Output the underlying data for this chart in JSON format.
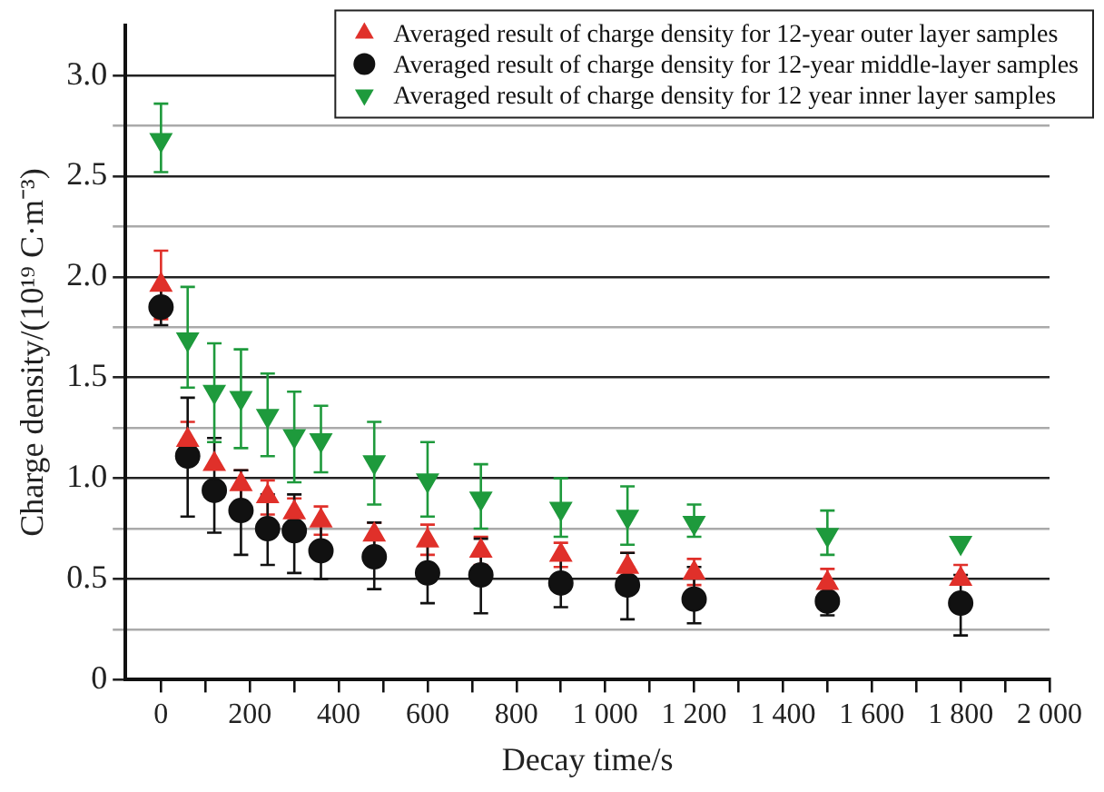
{
  "chart_data": {
    "type": "scatter",
    "xlabel": "Decay time/s",
    "ylabel": "Charge density/(10¹⁹ C·m⁻³)",
    "xlim": [
      -80,
      2000
    ],
    "ylim": [
      0,
      3.25
    ],
    "xticks": [
      0,
      {
        "value": 100,
        "label": null
      },
      200,
      {
        "value": 300,
        "label": null
      },
      400,
      {
        "value": 500,
        "label": null
      },
      600,
      {
        "value": 700,
        "label": null
      },
      800,
      {
        "value": 900,
        "label": null
      },
      {
        "value": 1000,
        "label": "1 000"
      },
      {
        "value": 1100,
        "label": null
      },
      {
        "value": 1200,
        "label": "1 200"
      },
      {
        "value": 1300,
        "label": null
      },
      {
        "value": 1400,
        "label": "1 400"
      },
      {
        "value": 1500,
        "label": null
      },
      {
        "value": 1600,
        "label": "1 600"
      },
      {
        "value": 1700,
        "label": null
      },
      {
        "value": 1800,
        "label": "1 800"
      },
      {
        "value": 1900,
        "label": null
      },
      {
        "value": 2000,
        "label": "2 000"
      }
    ],
    "yticks": [
      0,
      {
        "value": 0.25,
        "label": null
      },
      {
        "value": 0.5,
        "label": "0.5"
      },
      {
        "value": 0.75,
        "label": null
      },
      {
        "value": 1,
        "label": "1.0"
      },
      {
        "value": 1.25,
        "label": null
      },
      {
        "value": 1.5,
        "label": "1.5"
      },
      {
        "value": 1.75,
        "label": null
      },
      {
        "value": 2,
        "label": "2.0"
      },
      {
        "value": 2.25,
        "label": null
      },
      {
        "value": 2.5,
        "label": "2.5"
      },
      {
        "value": 2.75,
        "label": null
      },
      {
        "value": 3,
        "label": "3.0"
      }
    ],
    "grid": "y",
    "legend": "top right",
    "x": [
      0,
      60,
      120,
      180,
      240,
      300,
      360,
      480,
      600,
      720,
      900,
      1050,
      1200,
      1500,
      1800
    ],
    "series": [
      {
        "name": "Averaged result of charge density for 12-year outer layer samples",
        "color": "#e0302a",
        "marker": "triangle",
        "values": [
          1.96,
          1.19,
          1.07,
          0.97,
          0.91,
          0.83,
          0.79,
          0.72,
          0.69,
          0.64,
          0.62,
          0.56,
          0.53,
          0.48,
          0.5
        ],
        "errors": [
          [
            1.79,
            2.13
          ],
          [
            1.19,
            1.28
          ],
          null,
          [
            0.88,
            1.04
          ],
          [
            0.82,
            0.99
          ],
          [
            0.77,
            0.9
          ],
          [
            0.72,
            0.86
          ],
          [
            0.65,
            0.78
          ],
          [
            0.62,
            0.77
          ],
          [
            0.57,
            0.71
          ],
          [
            0.56,
            0.68
          ],
          [
            0.56,
            0.63
          ],
          [
            0.47,
            0.6
          ],
          [
            0.48,
            0.55
          ],
          [
            0.5,
            0.57
          ]
        ]
      },
      {
        "name": "Averaged result of charge density for 12-year middle-layer samples",
        "color": "#111111",
        "marker": "circle",
        "values": [
          1.85,
          1.11,
          0.94,
          0.84,
          0.75,
          0.74,
          0.64,
          0.61,
          0.53,
          0.52,
          0.48,
          0.47,
          0.4,
          0.39,
          0.38
        ],
        "errors": [
          [
            1.76,
            1.95
          ],
          [
            0.81,
            1.4
          ],
          [
            0.73,
            1.2
          ],
          [
            0.62,
            1.04
          ],
          [
            0.57,
            0.92
          ],
          [
            0.53,
            0.92
          ],
          [
            0.5,
            0.77
          ],
          [
            0.45,
            0.78
          ],
          [
            0.38,
            0.67
          ],
          [
            0.33,
            0.7
          ],
          [
            0.36,
            0.61
          ],
          [
            0.3,
            0.63
          ],
          [
            0.28,
            0.56
          ],
          [
            0.32,
            0.47
          ],
          [
            0.22,
            0.52
          ]
        ]
      },
      {
        "name": "Averaged result of charge density for 12 year inner layer samples",
        "color": "#1e9a3c",
        "marker": "triangle_down",
        "values": [
          2.68,
          1.69,
          1.43,
          1.4,
          1.31,
          1.21,
          1.19,
          1.08,
          0.99,
          0.9,
          0.85,
          0.81,
          0.78,
          0.72,
          0.68
        ],
        "errors": [
          [
            2.52,
            2.86
          ],
          [
            1.45,
            1.95
          ],
          [
            1.18,
            1.67
          ],
          [
            1.15,
            1.64
          ],
          [
            1.11,
            1.52
          ],
          [
            0.98,
            1.43
          ],
          [
            1.03,
            1.36
          ],
          [
            0.87,
            1.28
          ],
          [
            0.81,
            1.18
          ],
          [
            0.75,
            1.07
          ],
          [
            0.71,
            1.0
          ],
          [
            0.67,
            0.96
          ],
          [
            0.71,
            0.87
          ],
          [
            0.62,
            0.84
          ],
          null
        ]
      }
    ]
  }
}
